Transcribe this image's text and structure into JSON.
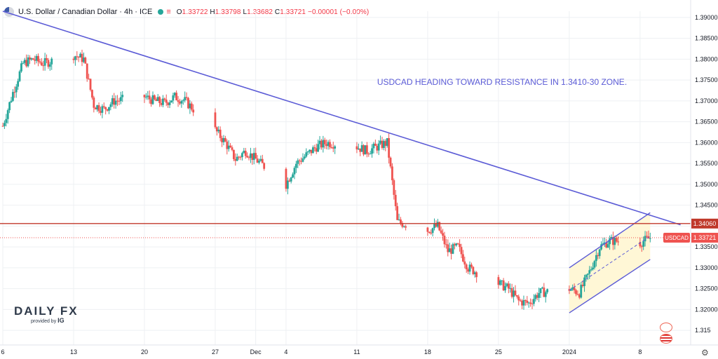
{
  "header": {
    "title": "U.S. Dollar / Canadian Dollar · 4h · ICE",
    "ohlc": {
      "o_label": "O",
      "o": "1.33722",
      "h_label": "H",
      "h": "1.33798",
      "l_label": "L",
      "l": "1.33682",
      "c_label": "C",
      "c": "1.33721",
      "change": "−0.00001 (−0.00%)"
    }
  },
  "annotation": "USDCAD HEADING TOWARD RESISTANCE IN 1.3410-30 ZONE.",
  "logo": {
    "main": "DAILY FX",
    "sub_prefix": "provided by",
    "sub_brand": "IG"
  },
  "labels": {
    "resistance": "1.34060",
    "symbol": "USDCAD",
    "last_price": "1.33721"
  },
  "colors": {
    "up": "#26a69a",
    "down": "#ef5350",
    "trendline": "#5b5bd6",
    "resistance": "#c0392b",
    "channel_fill": "#fff7d6",
    "grid": "#eef0f3"
  },
  "chart_data": {
    "type": "candlestick",
    "timeframe": "4h",
    "title": "U.S. Dollar / Canadian Dollar · 4h · ICE",
    "y_axis": {
      "ticks": [
        1.39,
        1.385,
        1.38,
        1.375,
        1.37,
        1.365,
        1.36,
        1.355,
        1.35,
        1.345,
        1.34,
        1.335,
        1.33,
        1.325,
        1.32,
        1.315
      ],
      "tick_labels": [
        "1.39000",
        "1.38500",
        "1.38000",
        "1.37500",
        "1.37000",
        "1.36500",
        "1.36000",
        "1.35500",
        "1.35000",
        "1.34500",
        "",
        "1.33500",
        "1.33000",
        "1.32500",
        "1.32000",
        "1.315"
      ],
      "range": [
        1.3115,
        1.3915
      ]
    },
    "x_axis": {
      "tick_labels": [
        "6",
        "13",
        "20",
        "27",
        "Dec",
        "4",
        "11",
        "18",
        "25",
        "2024",
        "8"
      ],
      "tick_dates": [
        "2023-11-06",
        "2023-11-13",
        "2023-11-20",
        "2023-11-27",
        "2023-12-01",
        "2023-12-04",
        "2023-12-11",
        "2023-12-18",
        "2023-12-25",
        "2024-01-01",
        "2024-01-08"
      ],
      "range": [
        "2023-11-06",
        "2024-01-13"
      ]
    },
    "close_path": [
      [
        "2023-11-06",
        1.364
      ],
      [
        "2023-11-07",
        1.372
      ],
      [
        "2023-11-08",
        1.379
      ],
      [
        "2023-11-09",
        1.38
      ],
      [
        "2023-11-10",
        1.379
      ],
      [
        "2023-11-13",
        1.381
      ],
      [
        "2023-11-14",
        1.38
      ],
      [
        "2023-11-15",
        1.369
      ],
      [
        "2023-11-16",
        1.368
      ],
      [
        "2023-11-17",
        1.37
      ],
      [
        "2023-11-20",
        1.371
      ],
      [
        "2023-11-21",
        1.37
      ],
      [
        "2023-11-22",
        1.3695
      ],
      [
        "2023-11-23",
        1.371
      ],
      [
        "2023-11-24",
        1.37
      ],
      [
        "2023-11-27",
        1.363
      ],
      [
        "2023-11-28",
        1.36
      ],
      [
        "2023-11-29",
        1.356
      ],
      [
        "2023-11-30",
        1.358
      ],
      [
        "2023-12-01",
        1.356
      ],
      [
        "2023-12-04",
        1.35
      ],
      [
        "2023-12-05",
        1.355
      ],
      [
        "2023-12-06",
        1.357
      ],
      [
        "2023-12-07",
        1.359
      ],
      [
        "2023-12-08",
        1.36
      ],
      [
        "2023-12-11",
        1.359
      ],
      [
        "2023-12-12",
        1.358
      ],
      [
        "2023-12-13",
        1.359
      ],
      [
        "2023-12-14",
        1.36
      ],
      [
        "2023-12-15",
        1.341
      ],
      [
        "2023-12-18",
        1.339
      ],
      [
        "2023-12-19",
        1.34
      ],
      [
        "2023-12-20",
        1.334
      ],
      [
        "2023-12-21",
        1.335
      ],
      [
        "2023-12-22",
        1.33
      ],
      [
        "2023-12-26",
        1.325
      ],
      [
        "2023-12-27",
        1.322
      ],
      [
        "2023-12-28",
        1.3215
      ],
      [
        "2023-12-29",
        1.324
      ],
      [
        "2024-01-01",
        1.325
      ],
      [
        "2024-01-02",
        1.324
      ],
      [
        "2024-01-03",
        1.329
      ],
      [
        "2024-01-04",
        1.335
      ],
      [
        "2024-01-05",
        1.3365
      ],
      [
        "2024-01-08",
        1.336
      ],
      [
        "2024-01-09",
        1.3372
      ]
    ],
    "trendline": {
      "from": [
        "2023-11-06",
        1.3915
      ],
      "to": [
        "2024-01-12",
        1.3403
      ]
    },
    "resistance_level": 1.3406,
    "last_price": 1.33721,
    "channel": {
      "start": "2024-01-01",
      "end": "2024-01-09",
      "upper": [
        1.33,
        1.3432
      ],
      "lower": [
        1.3192,
        1.332
      ],
      "mid": [
        1.3246,
        1.3376
      ]
    }
  }
}
